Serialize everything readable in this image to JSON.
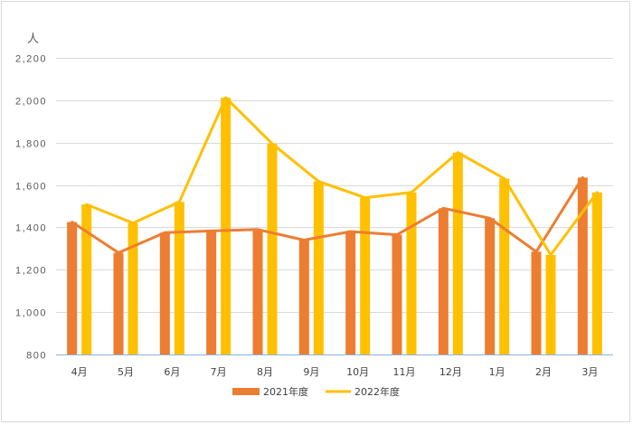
{
  "chart_data": {
    "type": "bar",
    "title": "",
    "unit_label": "人",
    "xlabel": "",
    "ylabel": "",
    "ylim": [
      800,
      2200
    ],
    "y_ticks": [
      800,
      1000,
      1200,
      1400,
      1600,
      1800,
      2000,
      2200
    ],
    "y_tick_labels": [
      "800",
      "1,000",
      "1,200",
      "1,400",
      "1,600",
      "1,800",
      "2,000",
      "2,200"
    ],
    "grid": true,
    "legend_position": "bottom",
    "categories": [
      "4月",
      "5月",
      "6月",
      "7月",
      "8月",
      "9月",
      "10月",
      "11月",
      "12月",
      "1月",
      "2月",
      "3月"
    ],
    "series": [
      {
        "name": "2021年度",
        "color": "#ED7D31",
        "values": [
          1425,
          1280,
          1375,
          1383,
          1390,
          1340,
          1380,
          1365,
          1490,
          1443,
          1285,
          1635
        ]
      },
      {
        "name": "2022年度",
        "color": "#FFC000",
        "values": [
          1508,
          1420,
          1520,
          2012,
          1795,
          1617,
          1540,
          1565,
          1753,
          1630,
          1270,
          1565
        ]
      }
    ],
    "overlay": "line"
  }
}
